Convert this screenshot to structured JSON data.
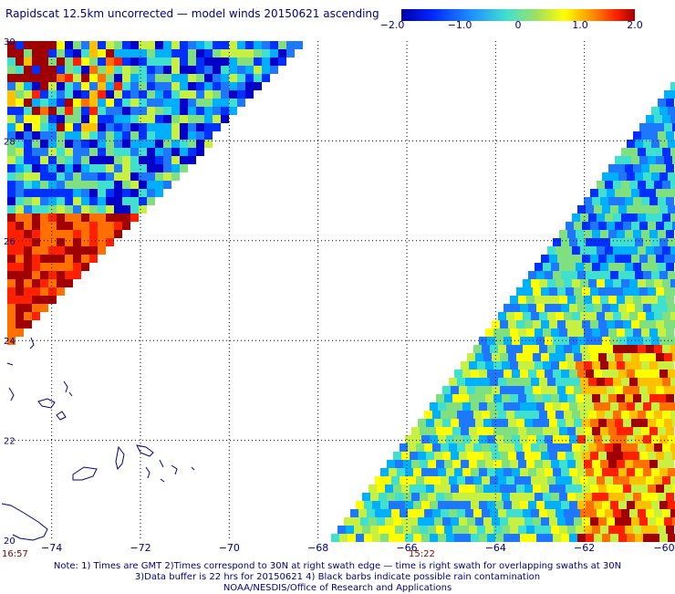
{
  "title": "Rapidscat 12.5km uncorrected — model winds 20150621 ascending",
  "colorbar": {
    "labels": [
      "−2.0",
      "−1.0",
      "0",
      "1.0",
      "2.0"
    ],
    "range": [
      -2.0,
      2.0
    ]
  },
  "map": {
    "lon_range": [
      -75,
      -60
    ],
    "lat_range": [
      20,
      30
    ],
    "x_ticks": [
      "−74",
      "−72",
      "−70",
      "−68",
      "−66",
      "−64",
      "−62",
      "−60"
    ],
    "y_ticks": [
      "30",
      "28",
      "26",
      "24",
      "22",
      "20"
    ],
    "time_left": "16:57",
    "time_mid": "15:22"
  },
  "notes": [
    "Note: 1) Times are GMT 2)Times correspond to 30N at right swath edge — time is right swath for overlapping swaths at 30N",
    "3)Data buffer is 22 hrs for 20150621 4) Black barbs indicate possible rain contamination",
    "NOAA/NESDIS/Office of Research and Applications"
  ],
  "colors": {
    "text": "#000080",
    "time_label": "#800000",
    "coast": "#000080"
  }
}
